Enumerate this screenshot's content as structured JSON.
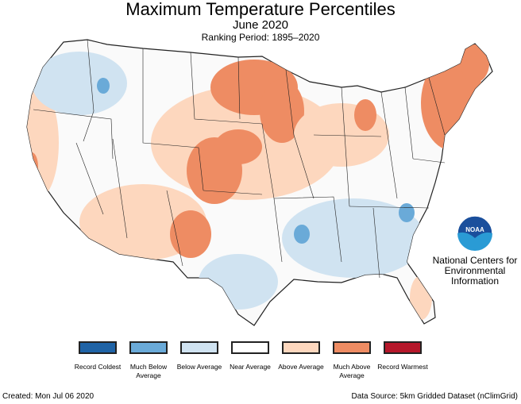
{
  "header": {
    "title": "Maximum Temperature Percentiles",
    "subtitle": "June 2020",
    "period": "Ranking Period: 1895–2020"
  },
  "colors": {
    "record_coldest": "#1f63a6",
    "much_below": "#6aaad8",
    "below": "#d0e3f1",
    "near": "#ffffff",
    "above": "#fdd7be",
    "much_above": "#ee8c63",
    "record_warmest": "#b5172a",
    "land_background": "#fafafa",
    "state_border": "#222222"
  },
  "legend": [
    {
      "label": "Record Coldest",
      "color": "#1f63a6"
    },
    {
      "label": "Much Below Average",
      "color": "#6aaad8"
    },
    {
      "label": "Below Average",
      "color": "#d0e3f1"
    },
    {
      "label": "Near Average",
      "color": "#ffffff"
    },
    {
      "label": "Above Average",
      "color": "#fdd7be"
    },
    {
      "label": "Much Above Average",
      "color": "#ee8c63"
    },
    {
      "label": "Record Warmest",
      "color": "#b5172a"
    }
  ],
  "logo": {
    "icon": "noaa-logo-icon",
    "text": "NOAA"
  },
  "org": {
    "line1": "National Centers for",
    "line2": "Environmental",
    "line3": "Information"
  },
  "footer": {
    "created": "Created: Mon Jul 06 2020",
    "source": "Data Source: 5km Gridded Dataset (nClimGrid)"
  }
}
